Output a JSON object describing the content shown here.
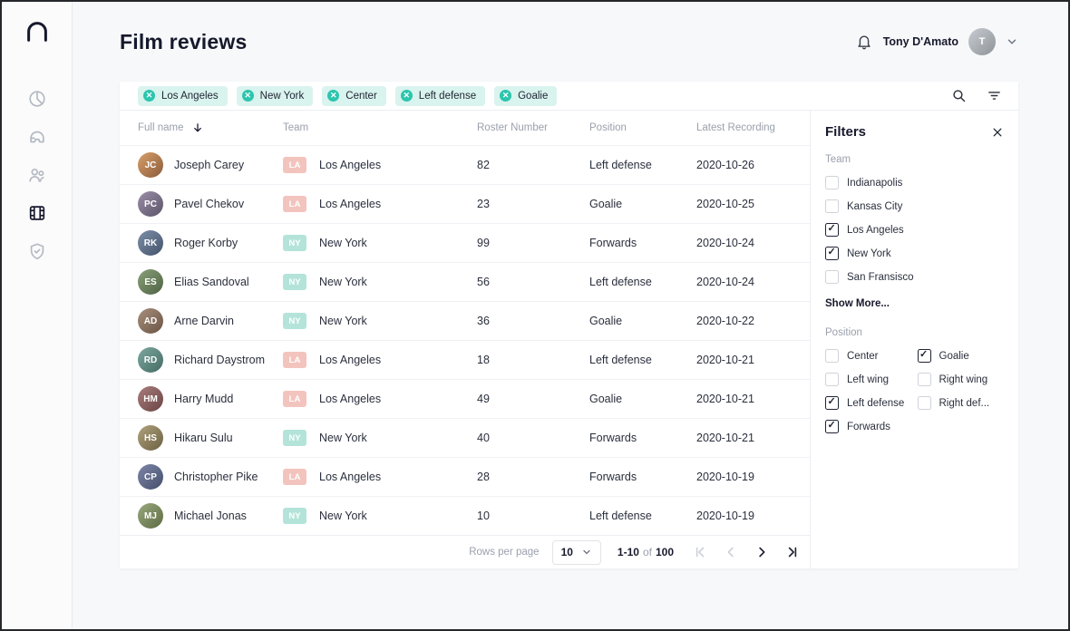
{
  "header": {
    "title": "Film reviews",
    "user_name": "Tony D'Amato"
  },
  "sidebar": {
    "items": [
      {
        "id": "dashboard",
        "icon": "pie-chart-icon",
        "active": false
      },
      {
        "id": "equipment",
        "icon": "helmet-icon",
        "active": false
      },
      {
        "id": "players",
        "icon": "users-icon",
        "active": false
      },
      {
        "id": "film-reviews",
        "icon": "film-icon",
        "active": true
      },
      {
        "id": "security",
        "icon": "shield-icon",
        "active": false
      }
    ]
  },
  "chips": [
    {
      "label": "Los Angeles"
    },
    {
      "label": "New York"
    },
    {
      "label": "Center"
    },
    {
      "label": "Left defense"
    },
    {
      "label": "Goalie"
    }
  ],
  "table": {
    "columns": [
      "Full name",
      "Team",
      "Roster Number",
      "Position",
      "Latest Recording"
    ],
    "rows": [
      {
        "name": "Joseph Carey",
        "team_abbr": "LA",
        "team": "Los Angeles",
        "roster": "82",
        "position": "Left defense",
        "date": "2020-10-26"
      },
      {
        "name": "Pavel Chekov",
        "team_abbr": "LA",
        "team": "Los Angeles",
        "roster": "23",
        "position": "Goalie",
        "date": "2020-10-25"
      },
      {
        "name": "Roger Korby",
        "team_abbr": "NY",
        "team": "New York",
        "roster": "99",
        "position": "Forwards",
        "date": "2020-10-24"
      },
      {
        "name": "Elias Sandoval",
        "team_abbr": "NY",
        "team": "New York",
        "roster": "56",
        "position": "Left defense",
        "date": "2020-10-24"
      },
      {
        "name": "Arne Darvin",
        "team_abbr": "NY",
        "team": "New York",
        "roster": "36",
        "position": "Goalie",
        "date": "2020-10-22"
      },
      {
        "name": "Richard Daystrom",
        "team_abbr": "LA",
        "team": "Los Angeles",
        "roster": "18",
        "position": "Left defense",
        "date": "2020-10-21"
      },
      {
        "name": "Harry Mudd",
        "team_abbr": "LA",
        "team": "Los Angeles",
        "roster": "49",
        "position": "Goalie",
        "date": "2020-10-21"
      },
      {
        "name": "Hikaru Sulu",
        "team_abbr": "NY",
        "team": "New York",
        "roster": "40",
        "position": "Forwards",
        "date": "2020-10-21"
      },
      {
        "name": "Christopher Pike",
        "team_abbr": "LA",
        "team": "Los Angeles",
        "roster": "28",
        "position": "Forwards",
        "date": "2020-10-19"
      },
      {
        "name": "Michael Jonas",
        "team_abbr": "NY",
        "team": "New York",
        "roster": "10",
        "position": "Left defense",
        "date": "2020-10-19"
      }
    ]
  },
  "pagination": {
    "rows_per_page_label": "Rows per page",
    "per_page": "10",
    "range": "1-10",
    "of_label": "of",
    "total": "100"
  },
  "filters": {
    "title": "Filters",
    "team": {
      "label": "Team",
      "options": [
        {
          "label": "Indianapolis",
          "checked": false
        },
        {
          "label": "Kansas City",
          "checked": false
        },
        {
          "label": "Los Angeles",
          "checked": true
        },
        {
          "label": "New York",
          "checked": true
        },
        {
          "label": "San Fransisco",
          "checked": false
        }
      ],
      "show_more": "Show More..."
    },
    "position": {
      "label": "Position",
      "options": [
        {
          "label": "Center",
          "checked": false
        },
        {
          "label": "Goalie",
          "checked": true
        },
        {
          "label": "Left wing",
          "checked": false
        },
        {
          "label": "Right wing",
          "checked": false
        },
        {
          "label": "Left defense",
          "checked": true
        },
        {
          "label": "Right def...",
          "checked": false
        },
        {
          "label": "Forwards",
          "checked": true
        }
      ]
    }
  },
  "colors": {
    "accent_teal": "#2cc5ae",
    "chip_bg": "#d9f3ee",
    "badge_la_bg": "#f3c4be",
    "badge_ny_bg": "#b4e4d9",
    "text_dark": "#16192c",
    "text_gray": "#9aa0ac"
  }
}
